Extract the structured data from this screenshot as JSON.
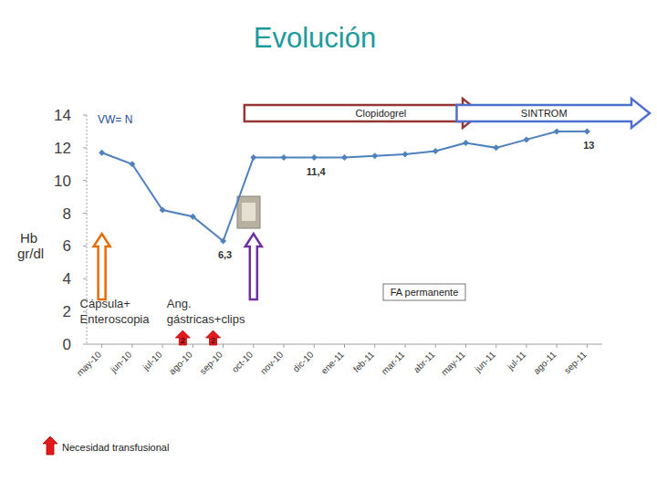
{
  "chart_data": {
    "type": "line",
    "title": "Evolución",
    "ylabel": "Hb gr/dl",
    "categories": [
      "may-10",
      "jun-10",
      "jul-10",
      "ago-10",
      "sep-10",
      "oct-10",
      "nov-10",
      "dic-10",
      "ene-11",
      "feb-11",
      "mar-11",
      "abr-11",
      "may-11",
      "jun-11",
      "jul-11",
      "ago-11",
      "sep-11"
    ],
    "values": [
      11.7,
      11.0,
      8.2,
      7.8,
      6.3,
      11.4,
      11.4,
      11.4,
      11.4,
      11.5,
      11.6,
      11.8,
      12.3,
      12.0,
      12.5,
      13.0,
      13.0
    ],
    "color": "#4f81bd",
    "marker": "diamond",
    "ylim": [
      0,
      14
    ],
    "yticks": [
      0,
      2,
      4,
      6,
      8,
      10,
      12,
      14
    ],
    "grid": false,
    "annotations": [
      {
        "text": "6,3",
        "x": "sep-10",
        "y": 6.3
      },
      {
        "text": "11,4",
        "x": "dic-10",
        "y": 11.4
      },
      {
        "text": "13",
        "x": "sep-11",
        "y": 13
      }
    ],
    "notes": [
      "VW= N",
      "FA permanente"
    ],
    "periods": [
      {
        "label": "Clopidogrel",
        "start": "oct-10",
        "end": "may-11",
        "color": "#943634"
      },
      {
        "label": "SINTROM",
        "start": "may-11",
        "end": "sep-11",
        "color": "#4f6fd0"
      }
    ],
    "procedures": [
      {
        "x": "may-10",
        "text": [
          "Cápsula+",
          "Enteroscopia"
        ],
        "color": "#e46c0a"
      },
      {
        "x": "oct-10",
        "text": [
          "Ang.",
          "gástricas+clips"
        ],
        "color": "#7030a0"
      }
    ],
    "transfusions": [
      {
        "x": "ago-10",
        "units": 2
      },
      {
        "x": "sep-10",
        "units": 2
      }
    ],
    "transfusion_legend": "Necesidad transfusional"
  }
}
